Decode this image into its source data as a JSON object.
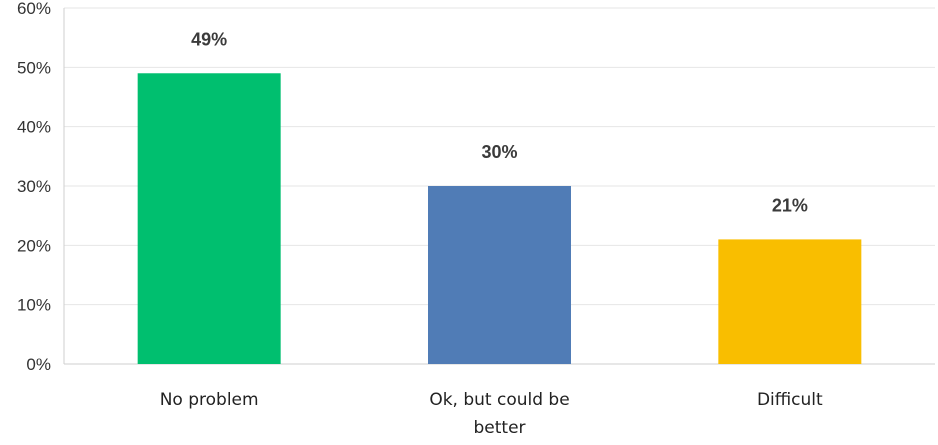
{
  "chart_data": {
    "type": "bar",
    "categories": [
      "No problem",
      "Ok, but could be better",
      "Difficult"
    ],
    "category_lines": [
      [
        "No problem"
      ],
      [
        "Ok, but could be",
        "better"
      ],
      [
        "Difficult"
      ]
    ],
    "values": [
      49,
      30,
      21
    ],
    "data_labels": [
      "49%",
      "30%",
      "21%"
    ],
    "colors": [
      "#00BF6F",
      "#507CB6",
      "#F9BE00"
    ],
    "ylim": [
      0,
      60
    ],
    "yticks": [
      0,
      10,
      20,
      30,
      40,
      50,
      60
    ],
    "ytick_labels": [
      "0%",
      "10%",
      "20%",
      "30%",
      "40%",
      "50%",
      "60%"
    ],
    "grid": true,
    "legend": "none"
  }
}
